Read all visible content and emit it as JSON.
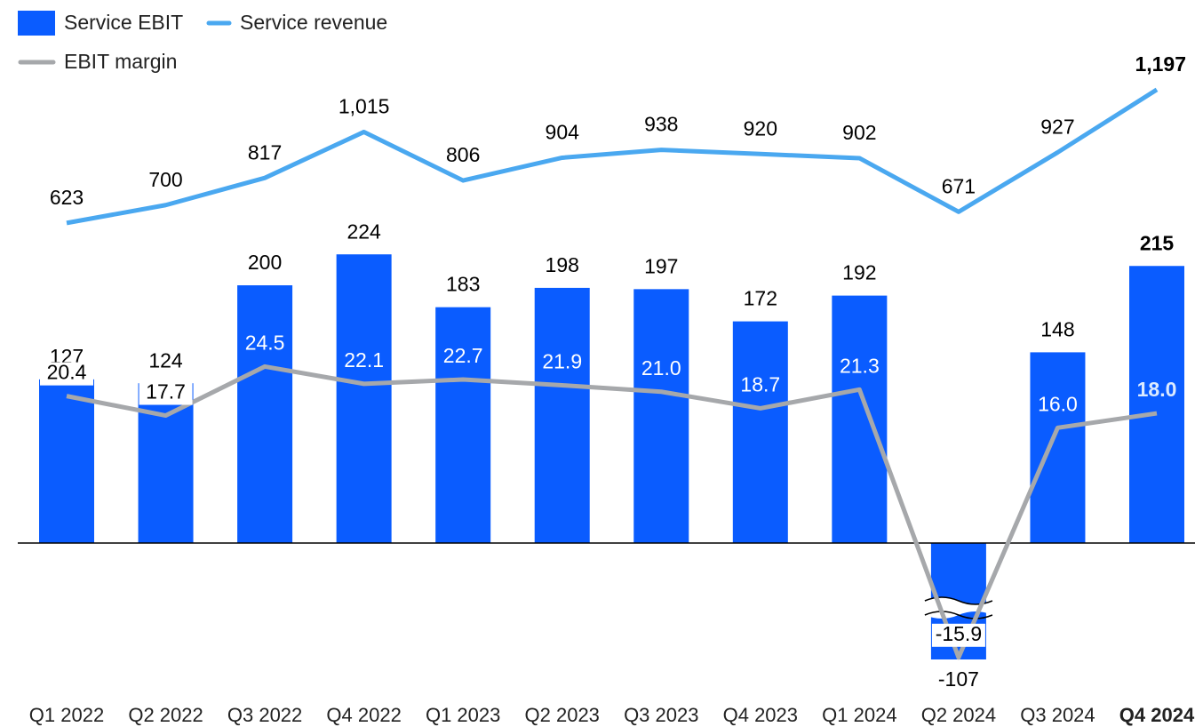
{
  "chart_data": {
    "type": "bar",
    "categories": [
      "Q1 2022",
      "Q2 2022",
      "Q3 2022",
      "Q4 2022",
      "Q1 2023",
      "Q2 2023",
      "Q3 2023",
      "Q4 2023",
      "Q1 2024",
      "Q2 2024",
      "Q3 2024",
      "Q4 2024"
    ],
    "ylim": [
      -100,
      370
    ],
    "y2lim": [
      -1310,
      1298
    ],
    "y3lim": [
      -17.9,
      66.2
    ],
    "series": [
      {
        "name": "Service EBIT",
        "type": "bar",
        "color": "#0a5cff",
        "values": [
          127,
          124,
          200,
          224,
          183,
          198,
          197,
          172,
          192,
          -107,
          148,
          215
        ]
      },
      {
        "name": "Service revenue",
        "type": "line",
        "axis": "y2",
        "color": "#4aa8f0",
        "values": [
          623,
          700,
          817,
          1015,
          806,
          904,
          938,
          920,
          902,
          671,
          927,
          1197
        ],
        "value_labels": [
          "623",
          "700",
          "817",
          "1,015",
          "806",
          "904",
          "938",
          "920",
          "902",
          "671",
          "927",
          "1,197"
        ]
      },
      {
        "name": "EBIT margin",
        "type": "line",
        "axis": "y3",
        "color": "#a6a8ab",
        "values": [
          20.4,
          17.7,
          24.5,
          22.1,
          22.7,
          21.9,
          21.0,
          18.7,
          21.3,
          -15.9,
          16.0,
          18.0
        ],
        "value_labels": [
          "20.4",
          "17.7",
          "24.5",
          "22.1",
          "22.7",
          "21.9",
          "21.0",
          "18.7",
          "21.3",
          "-15.9",
          "16.0",
          "18.0"
        ]
      }
    ]
  }
}
